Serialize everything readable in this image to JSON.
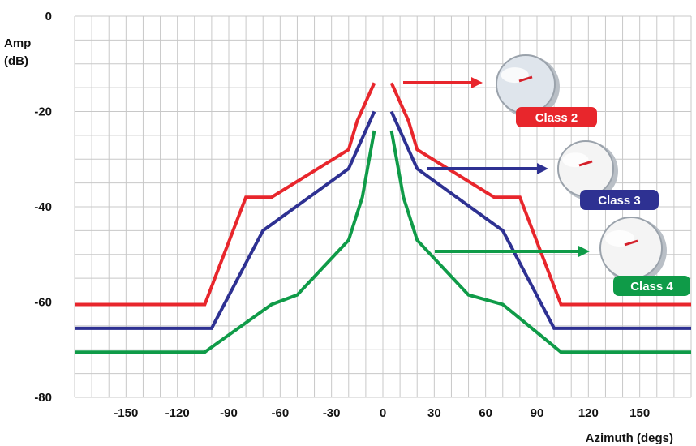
{
  "chart_data": {
    "type": "line",
    "xlabel": "Azimuth (degs)",
    "ylabel": "Amp\n(dB)",
    "xlim": [
      -180,
      180
    ],
    "ylim": [
      -80,
      0
    ],
    "x_ticks": [
      "-150",
      "-120",
      "-90",
      "-60",
      "-30",
      "0",
      "30",
      "60",
      "90",
      "120",
      "150"
    ],
    "x_tick_values": [
      -150,
      -120,
      -90,
      -60,
      -30,
      0,
      30,
      60,
      90,
      120,
      150
    ],
    "y_ticks": [
      "0",
      "-20",
      "-40",
      "-60",
      "-80"
    ],
    "y_tick_values": [
      0,
      -20,
      -40,
      -60,
      -80
    ],
    "grid": true,
    "series": [
      {
        "name": "Class 2",
        "color": "#e8262c",
        "icon": "dish-antenna",
        "points": [
          [
            -180,
            -60.5
          ],
          [
            -104,
            -60.5
          ],
          [
            -80,
            -38
          ],
          [
            -65,
            -38
          ],
          [
            -20,
            -28
          ],
          [
            -15,
            -22
          ],
          [
            -5,
            -14
          ],
          [
            5,
            -14
          ],
          [
            15,
            -22
          ],
          [
            20,
            -28
          ],
          [
            65,
            -38
          ],
          [
            80,
            -38
          ],
          [
            104,
            -60.5
          ],
          [
            180,
            -60.5
          ]
        ]
      },
      {
        "name": "Class 3",
        "color": "#2e3192",
        "icon": "dish-antenna",
        "points": [
          [
            -180,
            -65.5
          ],
          [
            -100,
            -65.5
          ],
          [
            -70,
            -45
          ],
          [
            -20,
            -32
          ],
          [
            -5,
            -20
          ],
          [
            5,
            -20
          ],
          [
            20,
            -32
          ],
          [
            70,
            -45
          ],
          [
            100,
            -65.5
          ],
          [
            180,
            -65.5
          ]
        ]
      },
      {
        "name": "Class 4",
        "color": "#0f9b48",
        "icon": "dish-antenna",
        "points": [
          [
            -180,
            -70.5
          ],
          [
            -104,
            -70.5
          ],
          [
            -65,
            -60.5
          ],
          [
            -50,
            -58.5
          ],
          [
            -20,
            -47
          ],
          [
            -12,
            -38
          ],
          [
            -5,
            -24
          ],
          [
            5,
            -24
          ],
          [
            12,
            -38
          ],
          [
            20,
            -47
          ],
          [
            50,
            -58.5
          ],
          [
            70,
            -60.5
          ],
          [
            104,
            -70.5
          ],
          [
            180,
            -70.5
          ]
        ]
      }
    ]
  },
  "colors": {
    "grid": "#c8c8c8",
    "background": "#ffffff",
    "text": "#111111"
  }
}
